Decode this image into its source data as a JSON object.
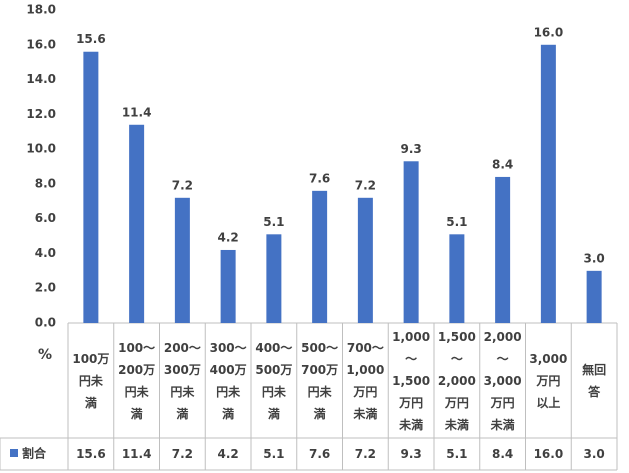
{
  "chart_data": {
    "type": "bar",
    "y_label": "%",
    "categories": [
      "100万\n円未\n満",
      "100～\n200万\n円未\n満",
      "200～\n300万\n円未\n満",
      "300～\n400万\n円未\n満",
      "400～\n500万\n円未\n満",
      "500～\n700万\n円未\n満",
      "700～\n1,000\n万円\n未満",
      "1,000\n～\n1,500\n万円\n未満",
      "1,500\n～\n2,000\n万円\n未満",
      "2,000\n～\n3,000\n万円\n未満",
      "3,000\n万円\n以上",
      "無回\n答"
    ],
    "series": [
      {
        "name": "割合",
        "color": "#4472c4",
        "values": [
          15.6,
          11.4,
          7.2,
          4.2,
          5.1,
          7.6,
          7.2,
          9.3,
          5.1,
          8.4,
          16.0,
          3.0
        ],
        "value_labels": [
          "15.6",
          "11.4",
          "7.2",
          "4.2",
          "5.1",
          "7.6",
          "7.2",
          "9.3",
          "5.1",
          "8.4",
          "16.0",
          "3.0"
        ]
      }
    ],
    "ylim": [
      0,
      18
    ],
    "yticks": [
      {
        "value": 0,
        "label": "0.0"
      },
      {
        "value": 2,
        "label": "2.0"
      },
      {
        "value": 4,
        "label": "4.0"
      },
      {
        "value": 6,
        "label": "6.0"
      },
      {
        "value": 8,
        "label": "8.0"
      },
      {
        "value": 10,
        "label": "10.0"
      },
      {
        "value": 12,
        "label": "12.0"
      },
      {
        "value": 14,
        "label": "14.0"
      },
      {
        "value": 16,
        "label": "16.0"
      },
      {
        "value": 18,
        "label": "18.0"
      }
    ],
    "grid": false
  }
}
